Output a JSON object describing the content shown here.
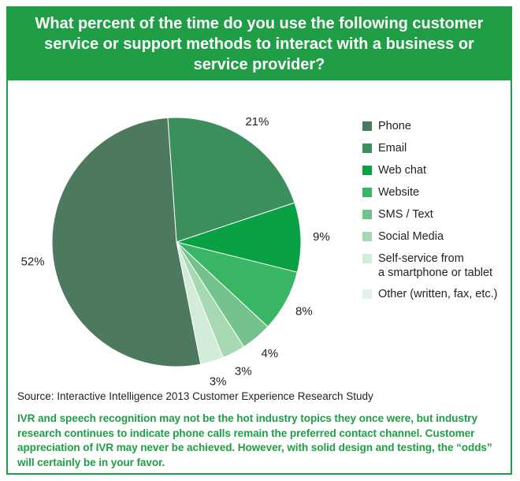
{
  "title": "What percent of the time do you use the following customer service or support methods to interact with a business or service provider?",
  "source": "Source: Interactive Intelligence 2013 Customer Experience Research Study",
  "note": "IVR and speech recognition may not be the hot industry topics they once were, but industry research continues to indicate phone calls remain the preferred contact channel. Customer appreciation of IVR may never be achieved. However, with solid design and testing, the “odds” will certainly be in your favor.",
  "chart_data": {
    "type": "pie",
    "title": "What percent of the time do you use the following customer service or support methods to interact with a business or service provider?",
    "legend_position": "right",
    "slices": [
      {
        "name": "Phone",
        "value": 52,
        "label": "52%",
        "color": "#4d7a5f"
      },
      {
        "name": "Email",
        "value": 21,
        "label": "21%",
        "color": "#3a8f5c"
      },
      {
        "name": "Web chat",
        "value": 9,
        "label": "9%",
        "color": "#0aa145"
      },
      {
        "name": "Website",
        "value": 8,
        "label": "8%",
        "color": "#38b565"
      },
      {
        "name": "SMS / Text",
        "value": 4,
        "label": "4%",
        "color": "#73c28d"
      },
      {
        "name": "Social Media",
        "value": 3,
        "label": "3%",
        "color": "#a6d8b3"
      },
      {
        "name": "Self-service from a smartphone or tablet",
        "value": 3,
        "label": "3%",
        "color": "#d3ecd9"
      },
      {
        "name": "Other (written, fax, etc.)",
        "value": 0,
        "label": "",
        "color": "#e2f2e6"
      }
    ],
    "legend": [
      "Phone",
      "Email",
      "Web chat",
      "Website",
      "SMS / Text",
      "Social Media",
      "Self-service from a smartphone or tablet",
      "Other (written, fax, etc.)"
    ]
  }
}
